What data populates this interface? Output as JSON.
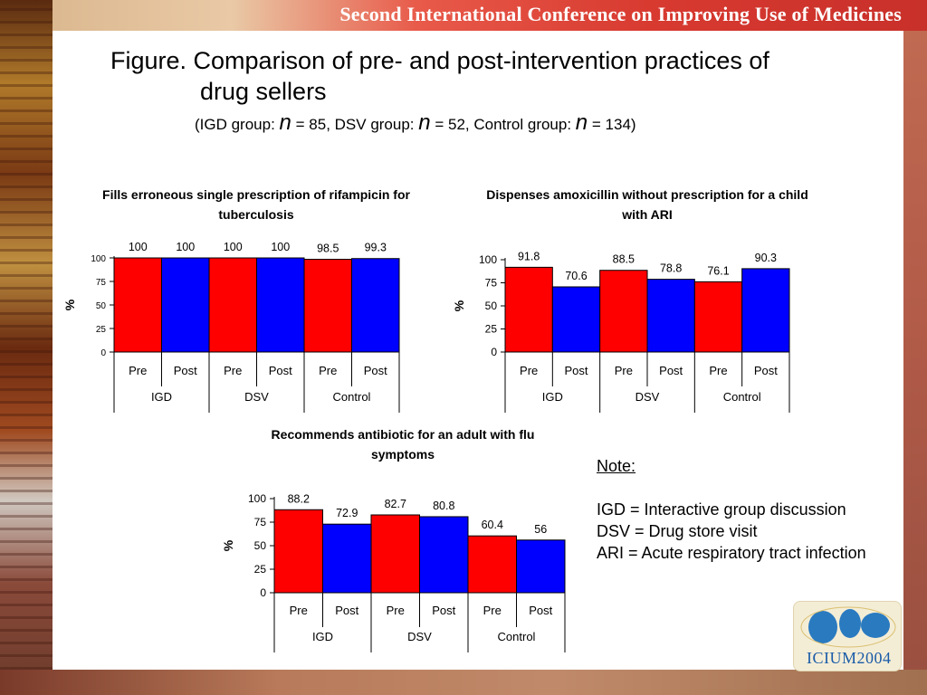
{
  "header": {
    "banner_title": "Second International Conference on Improving Use of Medicines",
    "title_line1": "Figure. Comparison of pre- and post-intervention practices of",
    "title_line2": "drug sellers",
    "subtitle_part1": "(IGD group: ",
    "subtitle_n1": "n",
    "subtitle_part2": " = 85, DSV group: ",
    "subtitle_n2": "n",
    "subtitle_part3": " = 52, Control group: ",
    "subtitle_n3": "n",
    "subtitle_part4": " = 134)"
  },
  "colors": {
    "pre": "#ff0000",
    "post": "#0000ff"
  },
  "chart_data": [
    {
      "type": "bar",
      "title_lines": [
        "Fills erroneous single prescription of rifampicin for",
        "tuberculosis"
      ],
      "ylabel": "%",
      "ylim": [
        0,
        100
      ],
      "yticks": [
        0,
        25,
        50,
        75,
        100
      ],
      "groups": [
        "IGD",
        "DSV",
        "Control"
      ],
      "categories": [
        "Pre",
        "Post",
        "Pre",
        "Post",
        "Pre",
        "Post"
      ],
      "values": [
        100,
        100,
        100,
        100,
        98.5,
        99.3
      ],
      "value_labels": [
        "100",
        "100",
        "100",
        "100",
        "98.5",
        "99.3"
      ]
    },
    {
      "type": "bar",
      "title_lines": [
        "Dispenses amoxicillin without prescription for a child",
        "with ARI"
      ],
      "ylabel": "%",
      "ylim": [
        0,
        100
      ],
      "yticks": [
        0,
        25,
        50,
        75,
        100
      ],
      "groups": [
        "IGD",
        "DSV",
        "Control"
      ],
      "categories": [
        "Pre",
        "Post",
        "Pre",
        "Post",
        "Pre",
        "Post"
      ],
      "values": [
        91.8,
        70.6,
        88.5,
        78.8,
        76.1,
        90.3
      ],
      "value_labels": [
        "91.8",
        "70.6",
        "88.5",
        "78.8",
        "76.1",
        "90.3"
      ]
    },
    {
      "type": "bar",
      "title_lines": [
        "Recommends antibiotic for an adult with flu",
        "symptoms"
      ],
      "ylabel": "%",
      "ylim": [
        0,
        100
      ],
      "yticks": [
        0,
        25,
        50,
        75,
        100
      ],
      "groups": [
        "IGD",
        "DSV",
        "Control"
      ],
      "categories": [
        "Pre",
        "Post",
        "Pre",
        "Post",
        "Pre",
        "Post"
      ],
      "values": [
        88.2,
        72.9,
        82.7,
        80.8,
        60.4,
        56
      ],
      "value_labels": [
        "88.2",
        "72.9",
        "82.7",
        "80.8",
        "60.4",
        "56"
      ]
    }
  ],
  "note": {
    "heading": "Note:",
    "lines": [
      "IGD  = Interactive group discussion",
      "DSV = Drug store visit",
      "ARI  = Acute respiratory tract infection"
    ]
  },
  "logo": {
    "text": "ICIUM2004"
  }
}
